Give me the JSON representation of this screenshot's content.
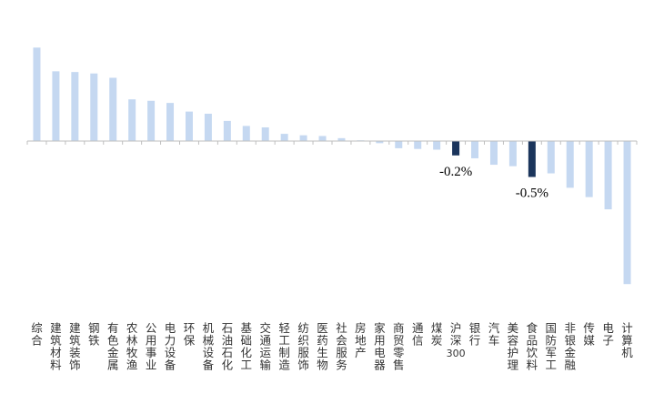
{
  "chart_data": {
    "type": "bar",
    "title": "",
    "xlabel": "",
    "ylabel": "",
    "ylim": [
      -2.2,
      1.45
    ],
    "grid": false,
    "legend": "none",
    "colors": {
      "default": "#c5d8f1",
      "highlight": "#1b355c",
      "axis": "#bfbfbf"
    },
    "categories": [
      "综合",
      "建筑材料",
      "建筑装饰",
      "钢铁",
      "有色金属",
      "农林牧渔",
      "公用事业",
      "电力设备",
      "环保",
      "机械设备",
      "石油石化",
      "基础化工",
      "交通运输",
      "轻工制造",
      "纺织服饰",
      "医药生物",
      "社会服务",
      "房地产",
      "家用电器",
      "商贸零售",
      "通信",
      "煤炭",
      "沪深300",
      "银行",
      "汽车",
      "美容护理",
      "食品饮料",
      "国防军工",
      "非银金融",
      "传媒",
      "电子",
      "计算机"
    ],
    "values": [
      1.3,
      0.97,
      0.96,
      0.94,
      0.88,
      0.58,
      0.56,
      0.53,
      0.41,
      0.38,
      0.28,
      0.21,
      0.19,
      0.1,
      0.08,
      0.07,
      0.04,
      0.01,
      -0.03,
      -0.1,
      -0.11,
      -0.12,
      -0.2,
      -0.24,
      -0.33,
      -0.35,
      -0.5,
      -0.45,
      -0.65,
      -0.78,
      -0.95,
      -1.99
    ],
    "highlighted": [
      "沪深300",
      "食品饮料"
    ],
    "data_labels": [
      {
        "category": "沪深300",
        "text": "-0.2%"
      },
      {
        "category": "食品饮料",
        "text": "-0.5%"
      }
    ]
  }
}
